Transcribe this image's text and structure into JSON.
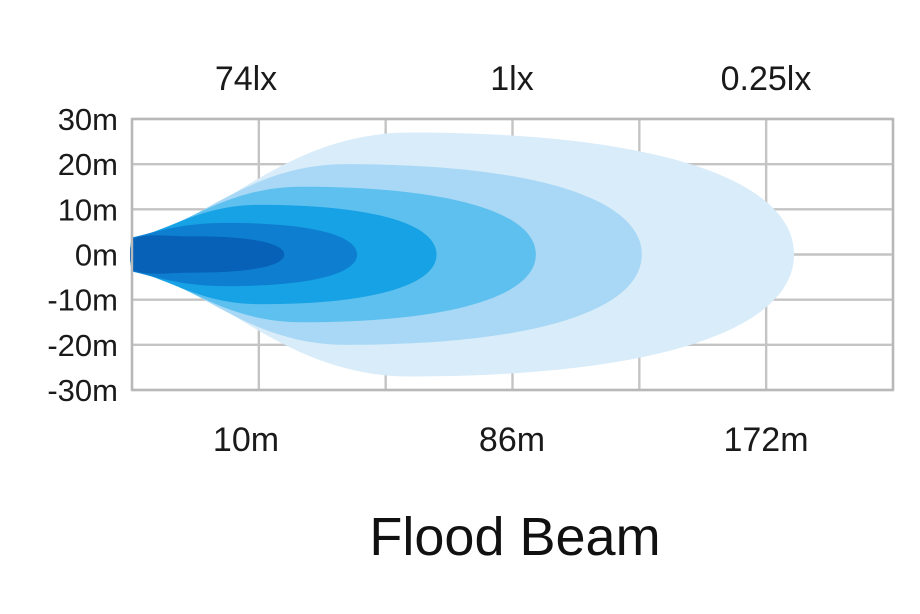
{
  "chart_data": {
    "type": "area",
    "title": "Flood Beam",
    "subtitle": "",
    "xlabel": "",
    "ylabel": "",
    "grid": true,
    "legend": "none",
    "y_ticks": [
      "30m",
      "20m",
      "10m",
      "0m",
      "-10m",
      "-20m",
      "-30m"
    ],
    "y_values": [
      30,
      20,
      10,
      0,
      -10,
      -20,
      -30
    ],
    "ylim": [
      -30,
      30
    ],
    "x_tick_labels": [
      "10m",
      "86m",
      "172m"
    ],
    "lux_labels": [
      "74lx",
      "1lx",
      "0.25lx"
    ],
    "series": [
      {
        "reach_fraction": 1.0,
        "half_width_m": 27,
        "color": "#d8ecf9"
      },
      {
        "reach_fraction": 0.77,
        "half_width_m": 20,
        "color": "#a8d8f5"
      },
      {
        "reach_fraction": 0.61,
        "half_width_m": 15,
        "color": "#5ec0ee"
      },
      {
        "reach_fraction": 0.46,
        "half_width_m": 11,
        "color": "#16a2e4"
      },
      {
        "reach_fraction": 0.34,
        "half_width_m": 7,
        "color": "#0e7fd0"
      },
      {
        "reach_fraction": 0.23,
        "half_width_m": 4,
        "color": "#0761b6"
      }
    ],
    "colors": {
      "grid": "#c4c4c4",
      "axis": "#b8b8b8",
      "text": "#1a1a1a"
    }
  }
}
